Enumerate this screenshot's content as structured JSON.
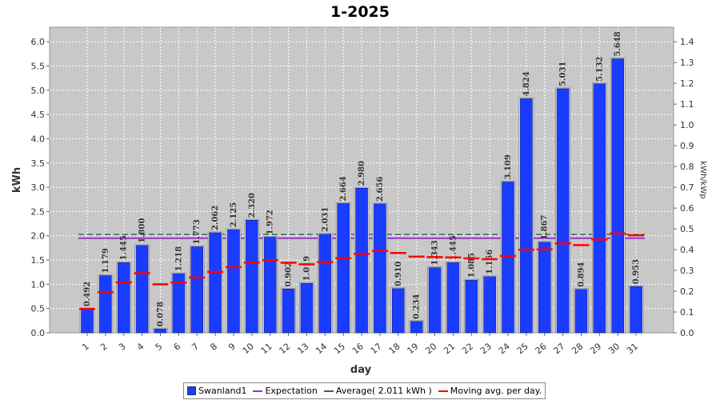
{
  "chart_data": {
    "type": "bar",
    "title": "1-2025",
    "xlabel": "day",
    "ylabel": "kWh",
    "ylabel_right": "kWh/kWp",
    "ylim": [
      0,
      6.3
    ],
    "ylim_right": [
      0,
      1.47
    ],
    "yticks": [
      "0.0",
      "0.5",
      "1.0",
      "1.5",
      "2.0",
      "2.5",
      "3.0",
      "3.5",
      "4.0",
      "4.5",
      "5.0",
      "5.5",
      "6.0"
    ],
    "yticks_right": [
      "0.0",
      "0.1",
      "0.2",
      "0.3",
      "0.4",
      "0.5",
      "0.6",
      "0.7",
      "0.8",
      "0.9",
      "1.0",
      "1.1",
      "1.2",
      "1.3",
      "1.4"
    ],
    "grid": true,
    "legend_position": "bottom",
    "categories": [
      "1",
      "2",
      "3",
      "4",
      "5",
      "6",
      "7",
      "8",
      "9",
      "10",
      "11",
      "12",
      "13",
      "14",
      "15",
      "16",
      "17",
      "18",
      "19",
      "20",
      "21",
      "22",
      "23",
      "24",
      "25",
      "26",
      "27",
      "28",
      "29",
      "30",
      "31"
    ],
    "series": [
      {
        "name": "Swanland1",
        "values": [
          0.492,
          1.179,
          1.445,
          1.8,
          0.078,
          1.218,
          1.773,
          2.062,
          2.125,
          2.32,
          1.972,
          0.902,
          1.019,
          2.031,
          2.664,
          2.98,
          2.656,
          0.91,
          0.234,
          1.343,
          1.445,
          1.085,
          1.156,
          3.109,
          4.824,
          1.867,
          5.031,
          0.894,
          5.132,
          5.648,
          0.953
        ],
        "labels": [
          "0.492",
          "1.179",
          "1.445",
          "1.800",
          "0.078",
          "1.218",
          "1.773",
          "2.062",
          "2.125",
          "2.320",
          "1.972",
          "0.902",
          "1.019",
          "2.031",
          "2.664",
          "2.980",
          "2.656",
          "0.910",
          "0.234",
          "1.343",
          "1.445",
          "1.085",
          "1.156",
          "3.109",
          "4.824",
          "1.867",
          "5.031",
          "0.894",
          "5.132",
          "5.648",
          "0.953"
        ],
        "color": "#1a3cff"
      },
      {
        "name": "Moving avg. per day.",
        "values": [
          0.492,
          0.836,
          1.039,
          1.229,
          0.999,
          1.035,
          1.14,
          1.255,
          1.352,
          1.449,
          1.496,
          1.446,
          1.413,
          1.457,
          1.537,
          1.627,
          1.688,
          1.645,
          1.571,
          1.56,
          1.554,
          1.533,
          1.517,
          1.583,
          1.713,
          1.719,
          1.842,
          1.808,
          1.923,
          2.047,
          2.011
        ],
        "color": "#ff0000"
      }
    ],
    "expectation": 1.95,
    "average": 2.011,
    "legend": {
      "bars": "Swanland1",
      "expectation": "Expectation",
      "average": "Average( 2.011 kWh )",
      "moving": "Moving avg. per day."
    },
    "colors": {
      "bar": "#1a3cff",
      "expectation": "#9933cc",
      "average": "#336655",
      "moving": "#ff0000",
      "plot_bg": "#c8c8c8"
    }
  }
}
